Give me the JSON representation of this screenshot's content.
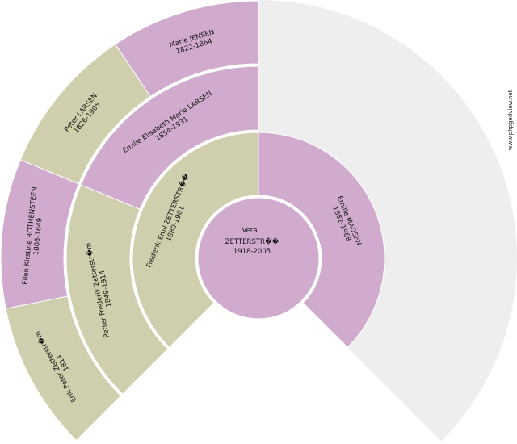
{
  "colors": {
    "female": "#d0abce",
    "male": "#cfcfad",
    "empty": "#eeeeee",
    "separator": "#ffffff"
  },
  "watermark": "www.phpgedview.net",
  "root": {
    "lines": [
      "Vera",
      "ZETTERSTR��",
      "1918-2005"
    ],
    "sex": "female"
  },
  "ancestors": [
    {
      "generation": 1,
      "slot": 0,
      "sex": "male",
      "lines": [
        "Frederik Emil ZETTERSTR��",
        "1880-1961"
      ]
    },
    {
      "generation": 1,
      "slot": 1,
      "sex": "female",
      "lines": [
        "Emilie MADSEN",
        "1882-1968"
      ]
    },
    {
      "generation": 2,
      "slot": 0,
      "sex": "male",
      "lines": [
        "Petter Frederik Zetterstr�m",
        "1849-1914"
      ]
    },
    {
      "generation": 2,
      "slot": 1,
      "sex": "female",
      "lines": [
        "Emilie Elisabeth Marie LARSEN",
        "1854-1931"
      ]
    },
    {
      "generation": 3,
      "slot": 0,
      "sex": "male",
      "lines": [
        "Erik Peter Zetterstr�m",
        "1814"
      ]
    },
    {
      "generation": 3,
      "slot": 1,
      "sex": "female",
      "lines": [
        "Ellen Kirstine ROTHENSTEEN",
        "1808-1849"
      ]
    },
    {
      "generation": 3,
      "slot": 2,
      "sex": "male",
      "lines": [
        "Peter LARSEN",
        "1826-1905"
      ]
    },
    {
      "generation": 3,
      "slot": 3,
      "sex": "female",
      "lines": [
        "Marie JENSEN",
        "1822-1864"
      ]
    }
  ]
}
